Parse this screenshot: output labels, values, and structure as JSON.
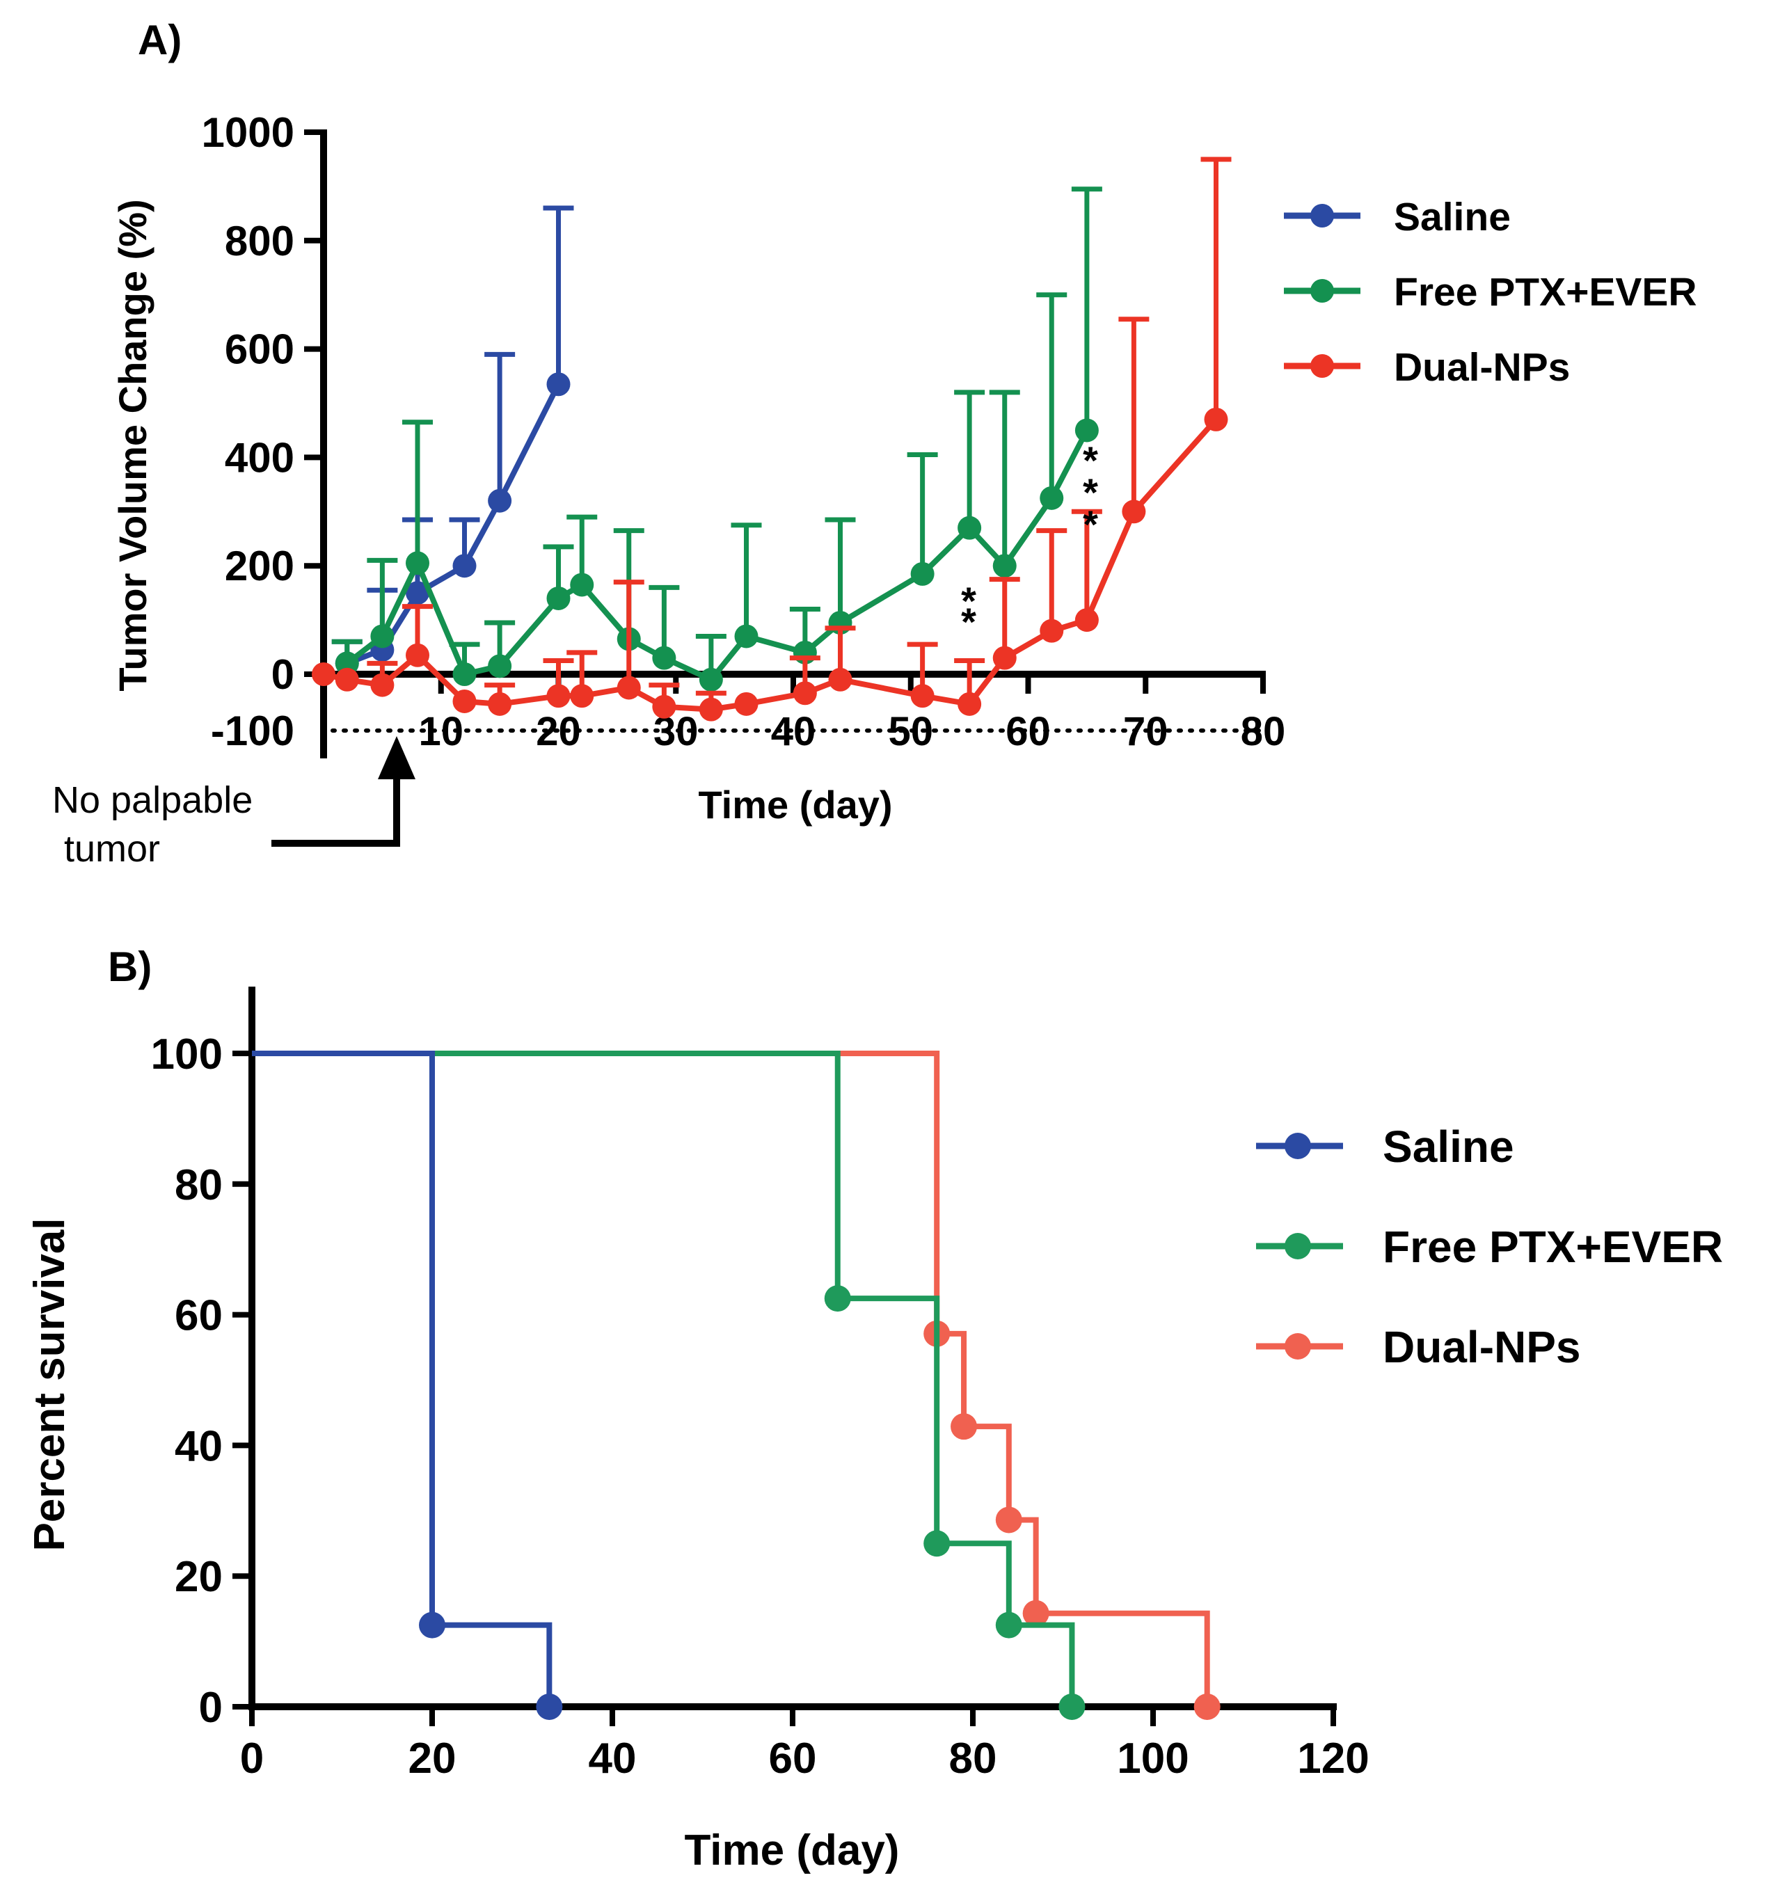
{
  "panels": {
    "a_label": "A)",
    "b_label": "B)"
  },
  "colors": {
    "saline": "#2b4aa3",
    "free": "#149150",
    "dual": "#ec3425",
    "saline_b": "#2b4aa3",
    "free_b": "#1f9a5b",
    "dual_b": "#f06150",
    "axis": "#000000"
  },
  "annotations": {
    "no_palpable_line1": "No palpable",
    "no_palpable_line2": "tumor",
    "sig_two": "**",
    "sig_three": "***"
  },
  "chart_data": [
    {
      "id": "A",
      "type": "line",
      "xlabel": "Time (day)",
      "ylabel": "Tumor Volume Change (%)",
      "xlim": [
        0,
        80
      ],
      "ylim": [
        -100,
        1000
      ],
      "xticks": [
        10,
        20,
        30,
        40,
        50,
        60,
        70,
        80
      ],
      "xtick_labels": [
        "10",
        "20",
        "30",
        "40",
        "50",
        "60",
        "70",
        "80"
      ],
      "yticks": [
        0,
        200,
        400,
        600,
        800,
        1000
      ],
      "ytick_labels": [
        "0",
        "200",
        "400",
        "600",
        "800",
        "1000"
      ],
      "extra_y_label": "-100",
      "legend_position": "right",
      "reference_line_y": -100,
      "series": [
        {
          "name": "Saline",
          "color_key": "saline",
          "x": [
            2,
            5,
            8,
            12,
            15,
            20
          ],
          "y": [
            20,
            45,
            150,
            200,
            320,
            535
          ],
          "err": [
            40,
            110,
            135,
            85,
            270,
            325
          ]
        },
        {
          "name": "Free PTX+EVER",
          "color_key": "free",
          "x": [
            2,
            5,
            8,
            12,
            15,
            20,
            22,
            26,
            29,
            33,
            36,
            41,
            44,
            51,
            55,
            58,
            62,
            65
          ],
          "y": [
            20,
            70,
            205,
            0,
            15,
            140,
            165,
            65,
            30,
            -10,
            70,
            40,
            95,
            185,
            270,
            200,
            325,
            450
          ],
          "err": [
            40,
            140,
            260,
            55,
            80,
            95,
            125,
            200,
            130,
            80,
            205,
            80,
            190,
            220,
            250,
            320,
            375,
            445
          ]
        },
        {
          "name": "Dual-NPs",
          "color_key": "dual",
          "x": [
            0,
            2,
            5,
            8,
            12,
            15,
            20,
            22,
            26,
            29,
            33,
            36,
            41,
            44,
            51,
            55,
            58,
            62,
            65,
            69,
            76
          ],
          "y": [
            0,
            -10,
            -20,
            35,
            -50,
            -55,
            -40,
            -40,
            -25,
            -60,
            -65,
            -55,
            -35,
            -10,
            -40,
            -55,
            30,
            80,
            100,
            300,
            470
          ],
          "err": [
            0,
            0,
            40,
            90,
            0,
            35,
            65,
            80,
            195,
            40,
            30,
            0,
            65,
            95,
            95,
            80,
            145,
            185,
            200,
            355,
            480
          ]
        }
      ]
    },
    {
      "id": "B",
      "type": "line",
      "step": true,
      "xlabel": "Time (day)",
      "ylabel": "Percent survival",
      "xlim": [
        0,
        120
      ],
      "ylim": [
        0,
        100
      ],
      "xticks": [
        0,
        20,
        40,
        60,
        80,
        100,
        120
      ],
      "xtick_labels": [
        "0",
        "20",
        "40",
        "60",
        "80",
        "100",
        "120"
      ],
      "yticks": [
        0,
        20,
        40,
        60,
        80,
        100
      ],
      "ytick_labels": [
        "0",
        "20",
        "40",
        "60",
        "80",
        "100"
      ],
      "legend_position": "right",
      "series": [
        {
          "name": "Saline",
          "color_key": "saline_b",
          "x": [
            0,
            20,
            33
          ],
          "y": [
            100,
            12.5,
            0
          ]
        },
        {
          "name": "Free PTX+EVER",
          "color_key": "free_b",
          "x": [
            0,
            65,
            76,
            84,
            91
          ],
          "y": [
            100,
            62.5,
            25,
            12.5,
            0
          ]
        },
        {
          "name": "Dual-NPs",
          "color_key": "dual_b",
          "x": [
            0,
            76,
            79,
            84,
            87,
            106
          ],
          "y": [
            100,
            57.1,
            42.9,
            28.6,
            14.3,
            0
          ]
        }
      ]
    }
  ]
}
